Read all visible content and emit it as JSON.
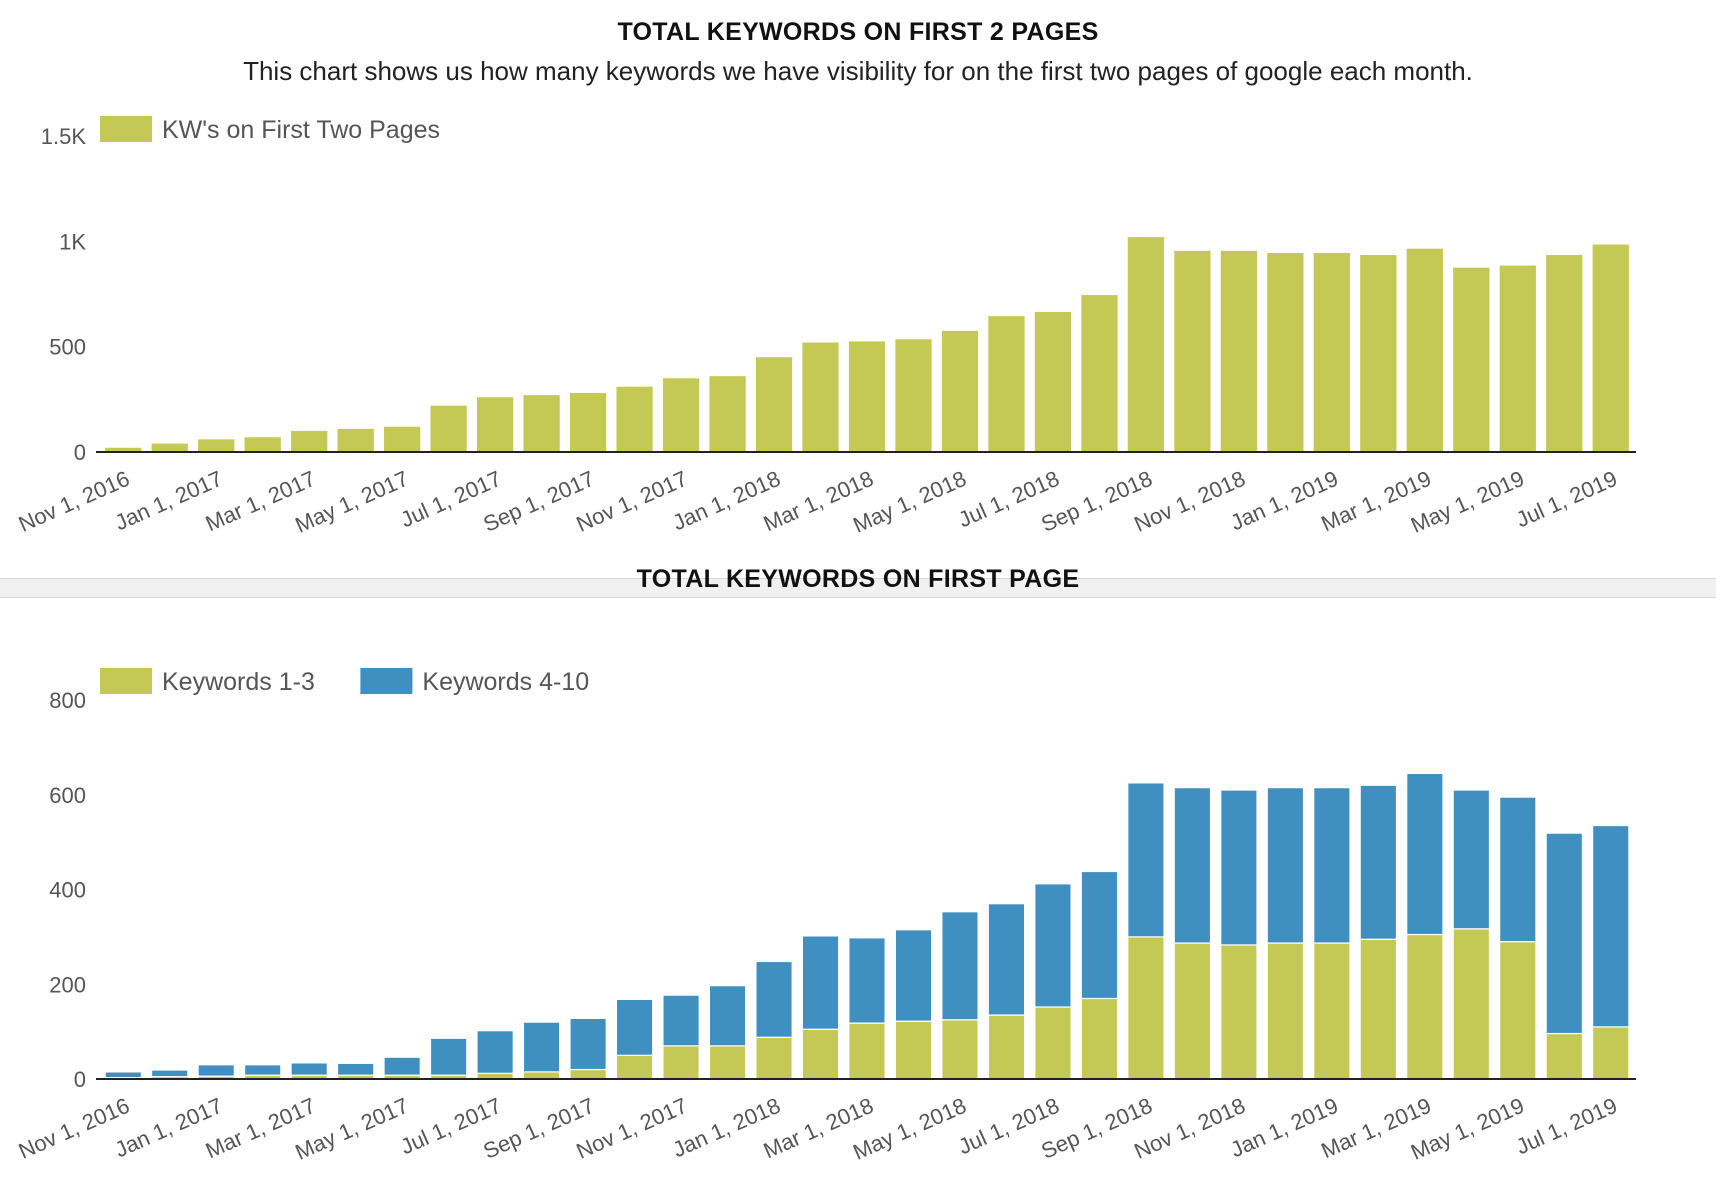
{
  "colors": {
    "green": "#c4c955",
    "blue": "#3f8fc1",
    "axis": "#222222",
    "tick_text": "#555555"
  },
  "chart_data": [
    {
      "type": "bar",
      "title": "TOTAL KEYWORDS ON FIRST 2 PAGES",
      "subtitle": "This chart shows us how many keywords we have visibility for on the first two pages of google each month.",
      "categories": [
        "Nov 1, 2016",
        "Dec 1, 2016",
        "Jan 1, 2017",
        "Feb 1, 2017",
        "Mar 1, 2017",
        "Apr 1, 2017",
        "May 1, 2017",
        "Jun 1, 2017",
        "Jul 1, 2017",
        "Aug 1, 2017",
        "Sep 1, 2017",
        "Oct 1, 2017",
        "Nov 1, 2017",
        "Dec 1, 2017",
        "Jan 1, 2018",
        "Feb 1, 2018",
        "Mar 1, 2018",
        "Apr 1, 2018",
        "May 1, 2018",
        "Jun 1, 2018",
        "Jul 1, 2018",
        "Aug 1, 2018",
        "Sep 1, 2018",
        "Oct 1, 2018",
        "Nov 1, 2018",
        "Dec 1, 2018",
        "Jan 1, 2019",
        "Feb 1, 2019",
        "Mar 1, 2019",
        "Apr 1, 2019",
        "May 1, 2019",
        "Jun 1, 2019",
        "Jul 1, 2019"
      ],
      "x_tick_labels": [
        "Nov 1, 2016",
        "Jan 1, 2017",
        "Mar 1, 2017",
        "May 1, 2017",
        "Jul 1, 2017",
        "Sep 1, 2017",
        "Nov 1, 2017",
        "Jan 1, 2018",
        "Mar 1, 2018",
        "May 1, 2018",
        "Jul 1, 2018",
        "Sep 1, 2018",
        "Nov 1, 2018",
        "Jan 1, 2019",
        "Mar 1, 2019",
        "May 1, 2019",
        "Jul 1, 2019"
      ],
      "y_tick_labels": [
        "0",
        "500",
        "1K",
        "1.5K"
      ],
      "y_ticks": [
        0,
        500,
        1000,
        1500
      ],
      "ylim": [
        0,
        1500
      ],
      "legend_position": "top-left",
      "series": [
        {
          "name": "KW's on First Two Pages",
          "color": "#c4c955",
          "values": [
            20,
            40,
            60,
            70,
            100,
            110,
            120,
            220,
            260,
            270,
            280,
            310,
            350,
            360,
            450,
            520,
            525,
            535,
            575,
            645,
            665,
            745,
            1020,
            955,
            955,
            945,
            945,
            935,
            965,
            875,
            885,
            935,
            985
          ]
        }
      ]
    },
    {
      "type": "bar",
      "stacked": true,
      "title": "TOTAL KEYWORDS ON FIRST PAGE",
      "categories": [
        "Nov 1, 2016",
        "Dec 1, 2016",
        "Jan 1, 2017",
        "Feb 1, 2017",
        "Mar 1, 2017",
        "Apr 1, 2017",
        "May 1, 2017",
        "Jun 1, 2017",
        "Jul 1, 2017",
        "Aug 1, 2017",
        "Sep 1, 2017",
        "Oct 1, 2017",
        "Nov 1, 2017",
        "Dec 1, 2017",
        "Jan 1, 2018",
        "Feb 1, 2018",
        "Mar 1, 2018",
        "Apr 1, 2018",
        "May 1, 2018",
        "Jun 1, 2018",
        "Jul 1, 2018",
        "Aug 1, 2018",
        "Sep 1, 2018",
        "Oct 1, 2018",
        "Nov 1, 2018",
        "Dec 1, 2018",
        "Jan 1, 2019",
        "Feb 1, 2019",
        "Mar 1, 2019",
        "Apr 1, 2019",
        "May 1, 2019",
        "Jun 1, 2019",
        "Jul 1, 2019"
      ],
      "x_tick_labels": [
        "Nov 1, 2016",
        "Jan 1, 2017",
        "Mar 1, 2017",
        "May 1, 2017",
        "Jul 1, 2017",
        "Sep 1, 2017",
        "Nov 1, 2017",
        "Jan 1, 2018",
        "Mar 1, 2018",
        "May 1, 2018",
        "Jul 1, 2018",
        "Sep 1, 2018",
        "Nov 1, 2018",
        "Jan 1, 2019",
        "Mar 1, 2019",
        "May 1, 2019",
        "Jul 1, 2019"
      ],
      "y_tick_labels": [
        "0",
        "200",
        "400",
        "600",
        "800"
      ],
      "y_ticks": [
        0,
        200,
        400,
        600,
        800
      ],
      "ylim": [
        0,
        800
      ],
      "legend_position": "top-left",
      "series": [
        {
          "name": "Keywords 1-3",
          "color": "#c4c955",
          "values": [
            3,
            5,
            6,
            8,
            8,
            8,
            8,
            8,
            12,
            15,
            20,
            50,
            70,
            70,
            88,
            105,
            118,
            122,
            125,
            135,
            152,
            170,
            300,
            287,
            283,
            287,
            287,
            295,
            305,
            317,
            290,
            96,
            110
          ]
        },
        {
          "name": "Keywords 4-10",
          "color": "#3f8fc1",
          "values": [
            12,
            14,
            24,
            22,
            26,
            25,
            38,
            78,
            90,
            105,
            108,
            118,
            107,
            127,
            160,
            197,
            180,
            193,
            228,
            235,
            260,
            268,
            325,
            328,
            327,
            328,
            328,
            325,
            340,
            293,
            305,
            423,
            425
          ]
        }
      ]
    }
  ]
}
